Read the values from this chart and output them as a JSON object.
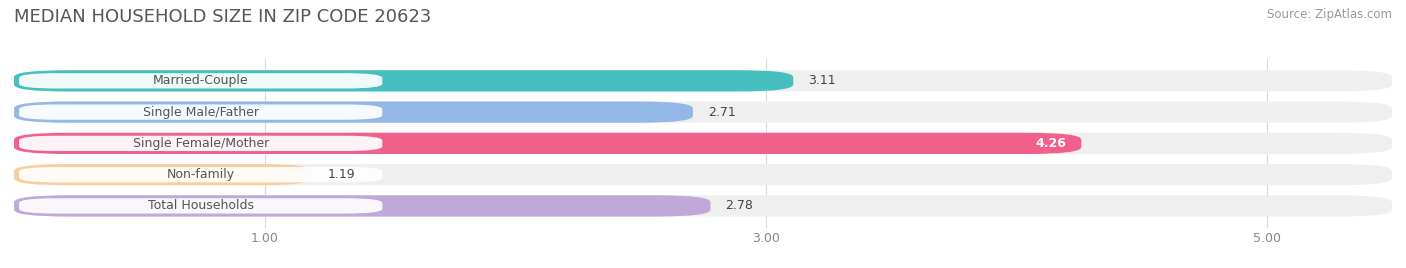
{
  "title": "MEDIAN HOUSEHOLD SIZE IN ZIP CODE 20623",
  "source": "Source: ZipAtlas.com",
  "categories": [
    "Married-Couple",
    "Single Male/Father",
    "Single Female/Mother",
    "Non-family",
    "Total Households"
  ],
  "values": [
    3.11,
    2.71,
    4.26,
    1.19,
    2.78
  ],
  "bar_colors": [
    "#46BFBF",
    "#93B8E8",
    "#F0608A",
    "#F5CFA0",
    "#C0A8D8"
  ],
  "value_text_colors": [
    "#444444",
    "#444444",
    "#FFFFFF",
    "#444444",
    "#444444"
  ],
  "value_inside": [
    false,
    false,
    true,
    false,
    false
  ],
  "row_bg_color": "#EFEFEF",
  "xlim_left": 0.0,
  "xlim_right": 5.5,
  "xticks": [
    1.0,
    3.0,
    5.0
  ],
  "xtick_labels": [
    "1.00",
    "3.00",
    "5.00"
  ],
  "title_fontsize": 13,
  "source_fontsize": 8.5,
  "label_fontsize": 9,
  "value_fontsize": 9,
  "background_color": "#FFFFFF",
  "bar_height": 0.68,
  "label_box_color": "#FFFFFF",
  "label_text_color": "#555555",
  "grid_color": "#D8D8D8"
}
